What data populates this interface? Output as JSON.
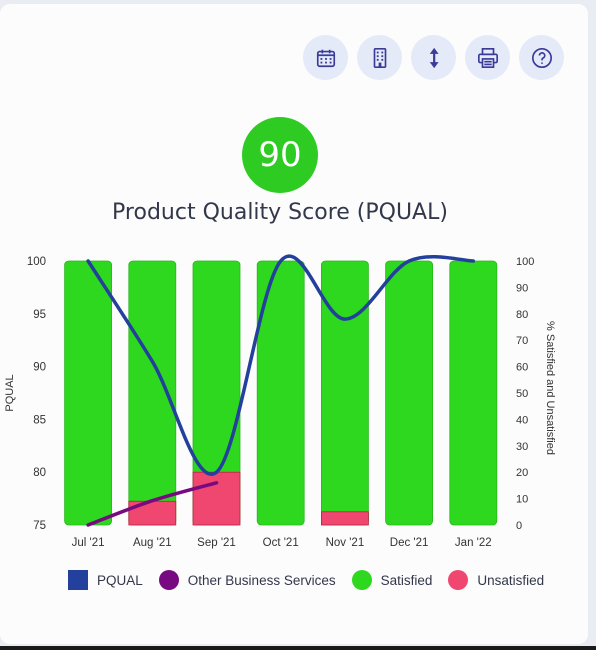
{
  "toolbar": {
    "buttons": [
      {
        "name": "calendar-icon"
      },
      {
        "name": "building-icon"
      },
      {
        "name": "vertical-arrows-icon"
      },
      {
        "name": "printer-icon"
      },
      {
        "name": "help-icon"
      }
    ]
  },
  "score": "90",
  "title": "Product Quality Score (PQUAL)",
  "colors": {
    "pqual": "#23409c",
    "other": "#770a80",
    "satisfied": "#2ed81f",
    "unsatisfied": "#ef476f",
    "score_badge": "#2ecc23"
  },
  "chart_data": {
    "type": "bar",
    "categories": [
      "Jul '21",
      "Aug '21",
      "Sep '21",
      "Oct '21",
      "Nov '21",
      "Dec '21",
      "Jan '22"
    ],
    "stacked": true,
    "series": [
      {
        "name": "Satisfied",
        "type": "bar",
        "axis": "right",
        "values": [
          100,
          91,
          80,
          100,
          95,
          100,
          100
        ]
      },
      {
        "name": "Unsatisfied",
        "type": "bar",
        "axis": "right",
        "values": [
          0,
          9,
          20,
          0,
          5,
          0,
          0
        ]
      },
      {
        "name": "PQUAL",
        "type": "line",
        "axis": "left",
        "values": [
          100,
          90.5,
          80,
          100,
          94.5,
          100,
          100
        ]
      },
      {
        "name": "Other Business Services",
        "type": "line",
        "axis": "left",
        "values": [
          75,
          77.3,
          79,
          null,
          null,
          null,
          null
        ]
      }
    ],
    "ylabel": "PQUAL",
    "ylim": [
      75,
      100
    ],
    "yticks": [
      75,
      80,
      85,
      90,
      95,
      100
    ],
    "y2label": "% Satisfied and Unsatisfied",
    "y2lim": [
      0,
      100
    ],
    "y2ticks": [
      0,
      10,
      20,
      30,
      40,
      50,
      60,
      70,
      80,
      90,
      100
    ],
    "legend_position": "bottom",
    "grid": false
  }
}
